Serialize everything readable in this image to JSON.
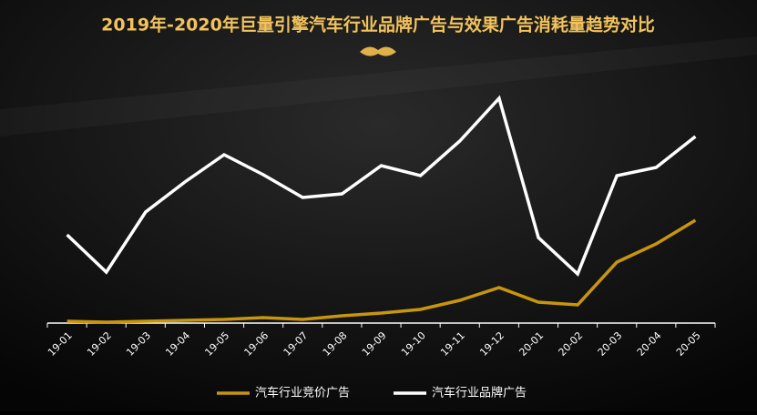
{
  "chart_data": {
    "type": "line",
    "title": "2019年-2020年巨量引擎汽车行业品牌广告与效果广告消耗量趋势对比",
    "categories": [
      "19-01",
      "19-02",
      "19-03",
      "19-04",
      "19-05",
      "19-06",
      "19-07",
      "19-08",
      "19-09",
      "19-10",
      "19-11",
      "19-12",
      "20-01",
      "20-02",
      "20-03",
      "20-04",
      "20-05"
    ],
    "series": [
      {
        "name": "汽车行业竞价广告",
        "color": "#c8960c",
        "values": [
          2,
          1,
          2,
          3,
          4,
          6,
          4,
          8,
          11,
          15,
          25,
          39,
          23,
          20,
          67,
          87,
          113
        ]
      },
      {
        "name": "汽车行业品牌广告",
        "color": "#ffffff",
        "values": [
          97,
          56,
          122,
          155,
          185,
          163,
          138,
          142,
          173,
          162,
          200,
          247,
          94,
          54,
          162,
          171,
          205
        ]
      }
    ]
  }
}
